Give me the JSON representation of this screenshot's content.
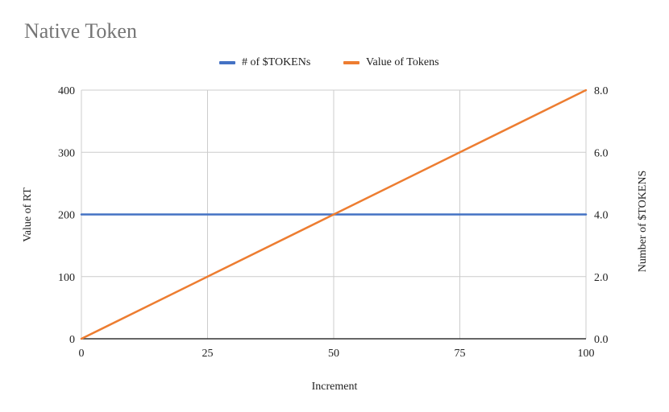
{
  "title": "Native Token",
  "legend": [
    {
      "label": "# of $TOKENs",
      "color": "#4472C4"
    },
    {
      "label": "Value of Tokens",
      "color": "#ED7D31"
    }
  ],
  "chart_data": {
    "type": "line",
    "title": "Native Token",
    "xlabel": "Increment",
    "ylabel_left": "Value of RT",
    "ylabel_right": "Number of $TOKENS",
    "xlim": [
      0,
      100
    ],
    "ylim_left": [
      0,
      400
    ],
    "ylim_right": [
      0,
      8
    ],
    "x_ticks": [
      "0",
      "25",
      "50",
      "75",
      "100"
    ],
    "y_ticks_left": [
      "0",
      "100",
      "200",
      "300",
      "400"
    ],
    "y_ticks_right": [
      "0.0",
      "2.0",
      "4.0",
      "6.0",
      "8.0"
    ],
    "grid": true,
    "legend_position": "top",
    "series": [
      {
        "name": "# of $TOKENs",
        "axis": "right",
        "color": "#4472C4",
        "x": [
          0,
          25,
          50,
          75,
          100
        ],
        "values": [
          4,
          4,
          4,
          4,
          4
        ]
      },
      {
        "name": "Value of Tokens",
        "axis": "left",
        "color": "#ED7D31",
        "x": [
          0,
          25,
          50,
          75,
          100
        ],
        "values": [
          0,
          100,
          200,
          300,
          400
        ]
      }
    ]
  }
}
